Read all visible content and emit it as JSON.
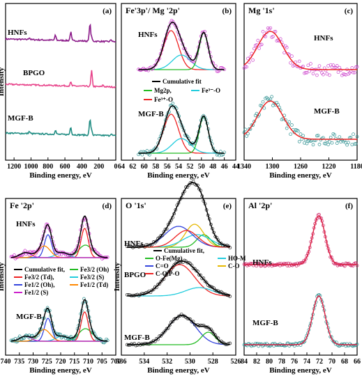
{
  "chart_data": [
    {
      "panel_label": "(a)",
      "type": "line",
      "title": "",
      "xlabel": "Binding energy, eV",
      "ylabel": "Intensity",
      "xlim": [
        1300,
        0
      ],
      "x_ticks": [
        1200,
        1000,
        800,
        600,
        400,
        200,
        0
      ],
      "sample_labels": [
        "HNFs",
        "BPGO",
        "MGF-B"
      ],
      "series": [
        {
          "label": "HNFs",
          "color": "#8B1A89",
          "peaks": [
            {
              "center": 1020,
              "height": 0.06
            },
            {
              "center": 712,
              "height": 0.14
            },
            {
              "center": 531,
              "height": 0.25
            },
            {
              "center": 305,
              "height": 0.5
            },
            {
              "center": 285,
              "height": 0.1
            },
            {
              "center": 55,
              "height": 0.06
            }
          ]
        },
        {
          "label": "BPGO",
          "color": "#E8438A",
          "peaks": [
            {
              "center": 531,
              "height": 0.1
            },
            {
              "center": 285,
              "height": 0.45
            },
            {
              "center": 150,
              "height": 0.05
            }
          ]
        },
        {
          "label": "MGF-B",
          "color": "#1F8C82",
          "peaks": [
            {
              "center": 1020,
              "height": 0.06
            },
            {
              "center": 712,
              "height": 0.12
            },
            {
              "center": 531,
              "height": 0.22
            },
            {
              "center": 305,
              "height": 0.45
            },
            {
              "center": 285,
              "height": 0.15
            },
            {
              "center": 55,
              "height": 0.06
            }
          ]
        }
      ]
    },
    {
      "panel_label": "(b)",
      "type": "line",
      "title": "Fe'3p'/ Mg '2p'",
      "xlabel": "Binding energy, eV",
      "ylabel": "",
      "xlim": [
        64,
        44
      ],
      "x_ticks": [
        64,
        62,
        60,
        58,
        56,
        54,
        52,
        50,
        48,
        46,
        44
      ],
      "sample_labels": [
        "HNFs",
        "MGF-B"
      ],
      "legend": [
        {
          "label": "Cumulative fit",
          "color": "#000000"
        },
        {
          "label": "Mg2p,",
          "color": "#22BB22"
        },
        {
          "label": "Fe³⁻-O",
          "color": "#22CCDD"
        },
        {
          "label": "Fe³⁺-O",
          "color": "#EE2222"
        }
      ],
      "components": [
        {
          "label": "Fe³⁺-O",
          "color": "#EE2222",
          "center": 55.3,
          "height": 0.8,
          "width": 1.3
        },
        {
          "label": "Fe³⁻-O",
          "color": "#22CCDD",
          "center": 53.5,
          "height": 0.3,
          "width": 1.6
        },
        {
          "label": "Mg2p,",
          "color": "#22BB22",
          "center": 49.6,
          "height": 0.75,
          "width": 0.8
        }
      ]
    },
    {
      "panel_label": "(c)",
      "type": "scatter",
      "title": "Mg '1s'",
      "xlabel": "Binding energy, eV",
      "ylabel": "",
      "xlim": [
        1340,
        1180
      ],
      "x_ticks": [
        1340,
        1300,
        1260,
        1220,
        1180
      ],
      "sample_labels": [
        "HNFs",
        "MGF-B"
      ],
      "series": [
        {
          "label": "HNFs",
          "marker_color": "#CC44CC",
          "center": 1303,
          "width": 18
        },
        {
          "label": "MGF-B",
          "marker_color": "#2A8F8F",
          "center": 1303,
          "width": 18
        }
      ]
    },
    {
      "panel_label": "(d)",
      "type": "line",
      "title": "Fe '2p'",
      "xlabel": "Binding energy, eV",
      "ylabel": "Intensity",
      "xlim": [
        740,
        700
      ],
      "x_ticks": [
        740,
        735,
        730,
        725,
        720,
        715,
        710,
        705,
        700
      ],
      "sample_labels": [
        "HNFs",
        "MGF-B"
      ],
      "legend": [
        {
          "label": "Cumulative fit,",
          "color": "#000000"
        },
        {
          "label": "Fe3/2 (Td),",
          "color": "#EE2222"
        },
        {
          "label": "Fe1/2 (Oh),",
          "color": "#3344DD"
        },
        {
          "label": "Fe1/2 (S)",
          "color": "#CC22CC"
        },
        {
          "label": "Fe3/2 (Oh)",
          "color": "#22BB22"
        },
        {
          "label": "Fe3/2 (S)",
          "color": "#22CCDD"
        },
        {
          "label": "Fe1/2 (Td)",
          "color": "#FF8800"
        }
      ],
      "components": [
        {
          "label": "Fe3/2 (Oh)",
          "color": "#22BB22",
          "center": 711.0,
          "height": 0.3,
          "width": 2.5
        },
        {
          "label": "Fe3/2 (Td),",
          "color": "#EE2222",
          "center": 711.3,
          "height": 0.7,
          "width": 1.3
        },
        {
          "label": "Fe3/2 (S)",
          "color": "#22CCDD",
          "center": 719.5,
          "height": 0.12,
          "width": 2.2
        },
        {
          "label": "Fe1/2 (Oh),",
          "color": "#3344DD",
          "center": 724.6,
          "height": 0.55,
          "width": 1.3
        },
        {
          "label": "Fe1/2 (Td)",
          "color": "#FF8800",
          "center": 726.0,
          "height": 0.28,
          "width": 2.2
        },
        {
          "label": "Fe1/2 (S)",
          "color": "#CC22CC",
          "center": 732.8,
          "height": 0.12,
          "width": 2.0
        }
      ]
    },
    {
      "panel_label": "(e)",
      "type": "line",
      "title": "O '1s'",
      "xlabel": "Binding energy, eV",
      "ylabel": "Intensity",
      "xlim": [
        536,
        526
      ],
      "x_ticks": [
        536,
        534,
        532,
        530,
        528,
        526
      ],
      "sample_labels": [
        "HNFs",
        "BPGO",
        "MGF-B"
      ],
      "legend": [
        {
          "label": "Cumulative fit,",
          "color": "#000000"
        },
        {
          "label": "HO-M",
          "color": "#22CCDD"
        },
        {
          "label": "O-Fe(Mg)",
          "color": "#22BB22"
        },
        {
          "label": "C-O",
          "color": "#E6B800"
        },
        {
          "label": "C=O",
          "color": "#3344DD"
        },
        {
          "label": "C-O/P-O",
          "color": "#EE2222"
        }
      ],
      "sample_fits": {
        "HNFs": [
          {
            "label": "O-Fe(Mg)",
            "color": "#22BB22",
            "center": 528.8,
            "height": 0.3,
            "width": 0.6
          },
          {
            "label": "C-O",
            "color": "#E6B800",
            "center": 529.6,
            "height": 0.55,
            "width": 0.8
          },
          {
            "label": "HO-M",
            "color": "#22CCDD",
            "center": 529.4,
            "height": 0.3,
            "width": 1.2
          },
          {
            "label": "C=O",
            "color": "#3344DD",
            "center": 531.0,
            "height": 0.5,
            "width": 1.2
          },
          {
            "label": "C-O/P-O",
            "color": "#EE2222",
            "center": 530.3,
            "height": 0.4,
            "width": 1.0
          }
        ],
        "BPGO": [
          {
            "label": "C-O/P-O",
            "color": "#EE2222",
            "center": 530.9,
            "height": 0.75,
            "width": 1.3
          },
          {
            "label": "HO-M",
            "color": "#22CCDD",
            "center": 529.2,
            "height": 0.2,
            "width": 1.2
          }
        ],
        "MGF-B": [
          {
            "label": "C=O",
            "color": "#3344DD",
            "center": 530.7,
            "height": 0.7,
            "width": 1.2
          },
          {
            "label": "O-Fe(Mg)",
            "color": "#22BB22",
            "center": 528.4,
            "height": 0.3,
            "width": 0.6
          }
        ]
      }
    },
    {
      "panel_label": "(f)",
      "type": "scatter",
      "title": "Al '2p'",
      "xlabel": "Binding energy, eV",
      "ylabel": "",
      "xlim": [
        84,
        66
      ],
      "x_ticks": [
        84,
        82,
        80,
        78,
        76,
        74,
        72,
        70,
        68,
        66
      ],
      "sample_labels": [
        "HNFs",
        "MGF-B"
      ],
      "series": [
        {
          "label": "HNFs",
          "marker_color": "#CC2266",
          "fit_color": "#DD2244",
          "center": 72.1,
          "width": 1.0
        },
        {
          "label": "MGF-B",
          "marker_color": "#2A8F8F",
          "fit_color": "#DD2244",
          "center": 72.1,
          "width": 1.0
        }
      ]
    }
  ]
}
